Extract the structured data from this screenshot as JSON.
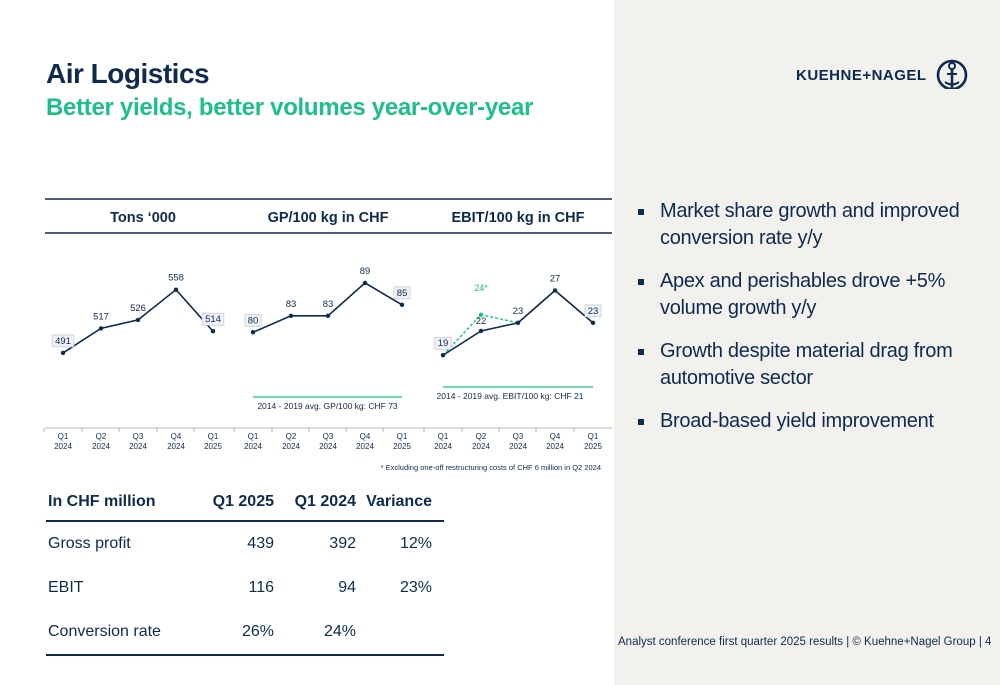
{
  "header": {
    "title": "Air Logistics",
    "subtitle": "Better yields, better volumes year-over-year"
  },
  "logo": {
    "text": "KUEHNE+NAGEL"
  },
  "bullets": [
    "Market share growth and improved conversion rate y/y",
    "Apex and perishables drove +5% volume growth y/y",
    "Growth despite material drag from automotive sector",
    "Broad-based yield improvement"
  ],
  "colors": {
    "navy": "#0e2a4f",
    "green": "#1dbf8a",
    "panel": "#f2f1ed"
  },
  "footnote": "* Excluding one-off restructuring costs of CHF 6 million in Q2 2024",
  "footer": "Analyst conference first quarter 2025 results | © Kuehne+Nagel Group | 4",
  "chart_data": [
    {
      "type": "line",
      "title": "Tons ‘000",
      "categories": [
        [
          "Q1",
          "2024"
        ],
        [
          "Q2",
          "2024"
        ],
        [
          "Q3",
          "2024"
        ],
        [
          "Q4",
          "2024"
        ],
        [
          "Q1",
          "2025"
        ]
      ],
      "values": [
        491,
        517,
        526,
        558,
        514
      ],
      "ylim": [
        420,
        600
      ]
    },
    {
      "type": "line",
      "title": "GP/100 kg in CHF",
      "categories": [
        [
          "Q1",
          "2024"
        ],
        [
          "Q2",
          "2024"
        ],
        [
          "Q3",
          "2024"
        ],
        [
          "Q4",
          "2024"
        ],
        [
          "Q1",
          "2025"
        ]
      ],
      "values": [
        80,
        83,
        83,
        89,
        85
      ],
      "ylim": [
        64,
        95
      ],
      "reference": {
        "value": 73,
        "label": "2014 - 2019 avg. GP/100 kg: CHF 73"
      }
    },
    {
      "type": "line",
      "title": "EBIT/100 kg in CHF",
      "categories": [
        [
          "Q1",
          "2024"
        ],
        [
          "Q2",
          "2024"
        ],
        [
          "Q3",
          "2024"
        ],
        [
          "Q4",
          "2024"
        ],
        [
          "Q1",
          "2025"
        ]
      ],
      "values": [
        19,
        22,
        23,
        27,
        23
      ],
      "ylim": [
        11,
        32
      ],
      "adjusted_series": {
        "values": [
          19,
          24,
          23
        ],
        "labels": [
          "",
          "24*",
          ""
        ]
      },
      "reference": {
        "value": 21,
        "label": "2014 - 2019 avg. EBIT/100 kg: CHF 21"
      }
    }
  ],
  "table": {
    "headers": [
      "In CHF million",
      "Q1 2025",
      "Q1 2024",
      "Variance"
    ],
    "rows": [
      [
        "Gross profit",
        "439",
        "392",
        "12%"
      ],
      [
        "EBIT",
        "116",
        "94",
        "23%"
      ],
      [
        "Conversion rate",
        "26%",
        "24%",
        ""
      ]
    ]
  }
}
